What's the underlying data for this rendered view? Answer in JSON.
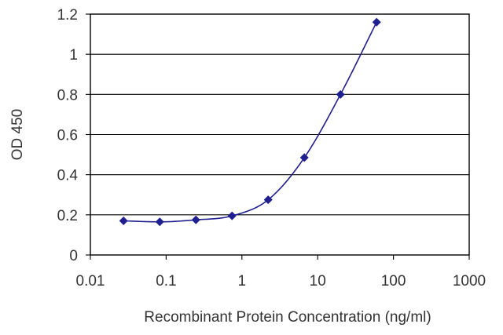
{
  "chart_data": {
    "type": "scatter",
    "title": "",
    "xlabel": "Recombinant Protein Concentration (ng/ml)",
    "ylabel": "OD 450",
    "x_scale": "log",
    "xlim": [
      0.01,
      1000
    ],
    "ylim": [
      0,
      1.2
    ],
    "x_ticks": [
      0.01,
      0.1,
      1,
      10,
      100,
      1000
    ],
    "x_tick_labels": [
      "0.01",
      "0.1",
      "1",
      "10",
      "100",
      "1000"
    ],
    "y_ticks": [
      0,
      0.2,
      0.4,
      0.6,
      0.8,
      1,
      1.2
    ],
    "y_tick_labels": [
      "0",
      "0.2",
      "0.4",
      "0.6",
      "0.8",
      "1",
      "1.2"
    ],
    "grid": "horizontal",
    "legend": "none",
    "series": [
      {
        "x": [
          0.0274,
          0.0823,
          0.247,
          0.741,
          2.22,
          6.67,
          20,
          60
        ],
        "y": [
          0.17,
          0.165,
          0.175,
          0.195,
          0.275,
          0.485,
          0.8,
          1.16
        ]
      }
    ],
    "colors": {
      "series": "#1f1f8f",
      "grid": "#000000",
      "frame": "#000000",
      "text": "#333333"
    }
  }
}
